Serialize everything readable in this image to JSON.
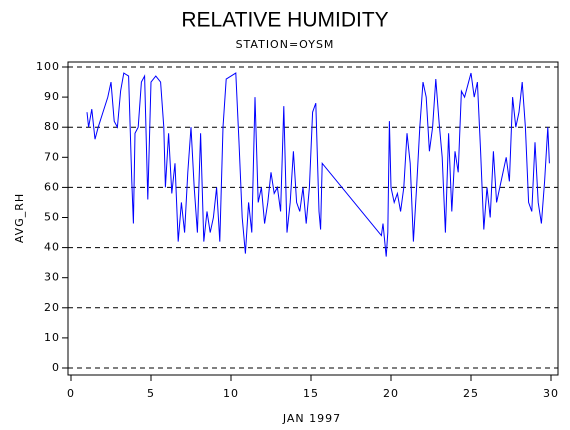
{
  "chart_data": {
    "type": "line",
    "title": "RELATIVE HUMIDITY",
    "subtitle": "STATION=OYSM",
    "x_label": "JAN 1997",
    "y_label": "AVG_RH",
    "color": "#0000ff",
    "xlim": [
      0,
      30
    ],
    "ylim": [
      0,
      100
    ],
    "xticks": [
      0,
      5,
      10,
      15,
      20,
      25,
      30
    ],
    "yticks": [
      0,
      10,
      20,
      30,
      40,
      50,
      60,
      70,
      80,
      90,
      100
    ],
    "grid_lines": [
      0,
      20,
      40,
      60,
      80,
      100
    ],
    "x": [
      1.0,
      1.1,
      1.3,
      1.5,
      1.7,
      2.0,
      2.3,
      2.5,
      2.7,
      2.9,
      3.1,
      3.3,
      3.6,
      3.8,
      3.9,
      4.0,
      4.2,
      4.4,
      4.6,
      4.8,
      5.0,
      5.3,
      5.6,
      5.8,
      5.9,
      6.1,
      6.3,
      6.5,
      6.7,
      6.9,
      7.1,
      7.3,
      7.5,
      7.7,
      7.9,
      8.1,
      8.3,
      8.5,
      8.7,
      8.9,
      9.1,
      9.3,
      9.5,
      9.7,
      10.0,
      10.3,
      10.5,
      10.7,
      10.9,
      11.1,
      11.3,
      11.5,
      11.7,
      11.9,
      12.1,
      12.3,
      12.5,
      12.7,
      12.9,
      13.1,
      13.3,
      13.5,
      13.7,
      13.9,
      14.1,
      14.3,
      14.5,
      14.7,
      14.9,
      15.1,
      15.3,
      15.5,
      15.6,
      15.7,
      19.4,
      19.5,
      19.7,
      19.8,
      19.9,
      20.0,
      20.2,
      20.4,
      20.6,
      20.8,
      21.0,
      21.2,
      21.4,
      21.6,
      21.8,
      22.0,
      22.2,
      22.4,
      22.6,
      22.8,
      23.0,
      23.2,
      23.4,
      23.6,
      23.8,
      24.0,
      24.2,
      24.4,
      24.6,
      24.8,
      25.0,
      25.2,
      25.4,
      25.6,
      25.8,
      26.0,
      26.2,
      26.4,
      26.6,
      26.8,
      27.0,
      27.2,
      27.4,
      27.6,
      27.8,
      28.0,
      28.2,
      28.4,
      28.6,
      28.8,
      29.0,
      29.2,
      29.4,
      29.6,
      29.8,
      29.9
    ],
    "values": [
      85,
      80,
      86,
      76,
      80,
      85,
      90,
      95,
      82,
      80,
      92,
      98,
      97,
      62,
      48,
      78,
      80,
      95,
      97,
      56,
      95,
      97,
      95,
      80,
      60,
      78,
      58,
      68,
      42,
      55,
      45,
      65,
      80,
      60,
      45,
      78,
      42,
      52,
      45,
      50,
      60,
      42,
      80,
      96,
      97,
      98,
      75,
      50,
      38,
      55,
      45,
      90,
      55,
      60,
      48,
      55,
      65,
      58,
      60,
      52,
      87,
      45,
      55,
      72,
      55,
      52,
      60,
      48,
      60,
      85,
      88,
      52,
      46,
      68,
      44,
      48,
      37,
      45,
      82,
      60,
      55,
      58,
      52,
      60,
      78,
      68,
      42,
      60,
      80,
      95,
      90,
      72,
      80,
      96,
      82,
      70,
      45,
      78,
      52,
      72,
      65,
      92,
      90,
      94,
      98,
      90,
      95,
      72,
      46,
      60,
      50,
      72,
      55,
      60,
      65,
      70,
      62,
      90,
      80,
      85,
      95,
      80,
      55,
      52,
      75,
      55,
      48,
      62,
      80,
      68
    ]
  }
}
